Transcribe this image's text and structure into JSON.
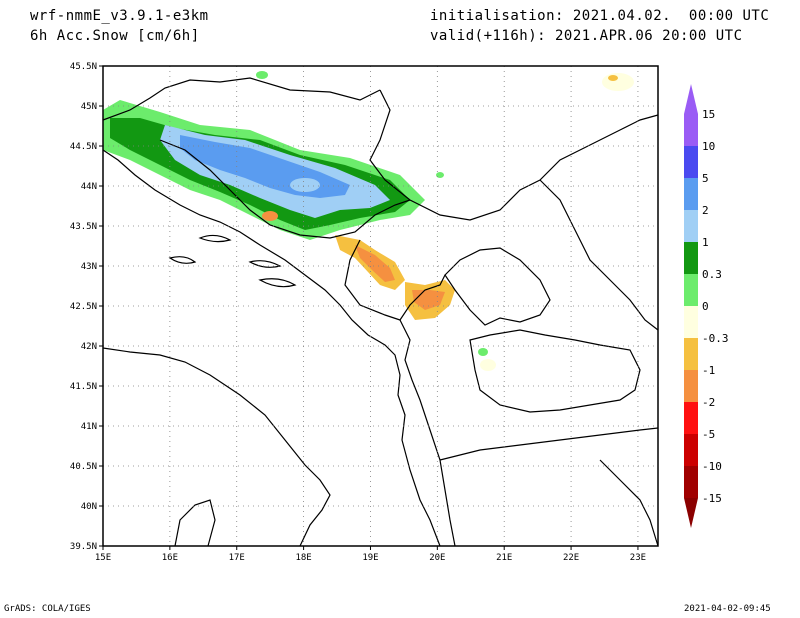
{
  "header": {
    "model": "wrf-nmmE_v3.9.1-e3km",
    "field": "6h Acc.Snow [cm/6h]",
    "initialisation": "initialisation: 2021.04.02.  00:00 UTC",
    "valid": "valid(+116h): 2021.APR.06 20:00 UTC"
  },
  "axes": {
    "lat_labels": [
      "45.5N",
      "45N",
      "44.5N",
      "44N",
      "43.5N",
      "43N",
      "42.5N",
      "42N",
      "41.5N",
      "41N",
      "40.5N",
      "40N",
      "39.5N"
    ],
    "lat_values": [
      45.5,
      45,
      44.5,
      44,
      43.5,
      43,
      42.5,
      42,
      41.5,
      41,
      40.5,
      40,
      39.5
    ],
    "lon_labels": [
      "15E",
      "16E",
      "17E",
      "18E",
      "19E",
      "20E",
      "21E",
      "22E",
      "23E"
    ],
    "lon_values": [
      15,
      16,
      17,
      18,
      19,
      20,
      21,
      22,
      23
    ],
    "lon_range": [
      15,
      23.3
    ],
    "lat_range": [
      39.5,
      45.5
    ],
    "grid": "dotted"
  },
  "colorbar": {
    "labels": [
      "15",
      "10",
      "5",
      "2",
      "1",
      "0.3",
      "0",
      "-0.3",
      "-1",
      "-2",
      "-5",
      "-10",
      "-15"
    ],
    "colors": [
      "#9a5cf5",
      "#4a4af0",
      "#5a9cf0",
      "#a0cff5",
      "#129812",
      "#6cec6c",
      "#ffffff",
      "#ffffe0",
      "#f5c040",
      "#f59040",
      "#ff1010",
      "#cc0000",
      "#a00000"
    ],
    "top_arrow_color": "#9a5cf5",
    "bottom_arrow_color": "#8b0000"
  },
  "footer": {
    "left": "GrADS: COLA/IGES",
    "right": "2021-04-02-09:45"
  }
}
